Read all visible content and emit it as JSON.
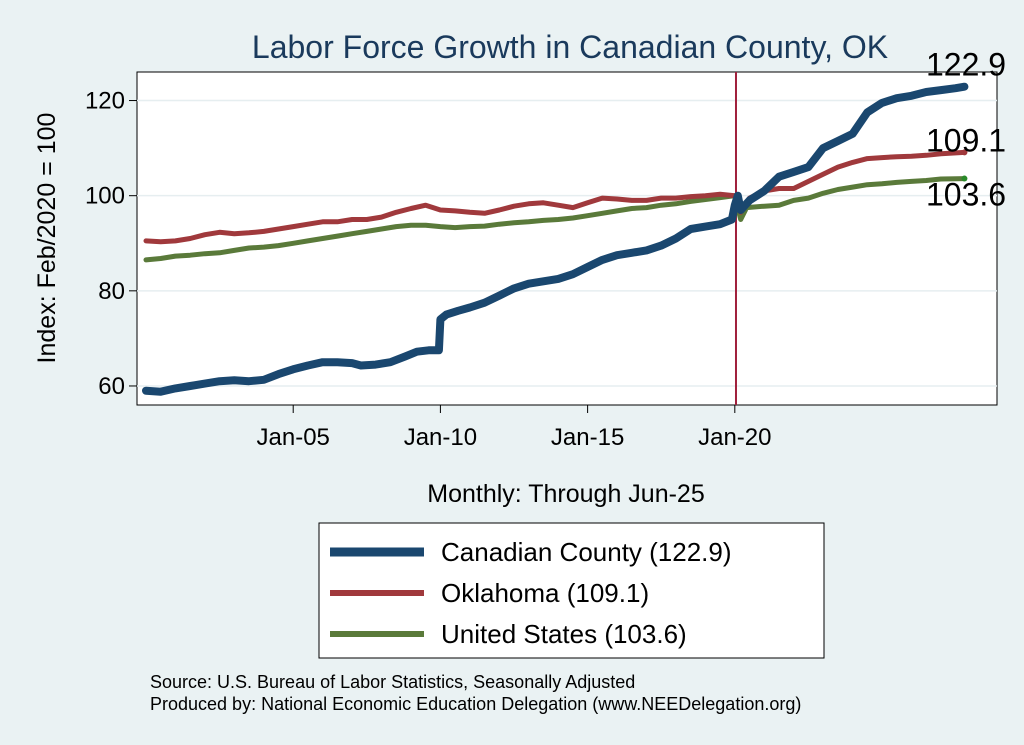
{
  "chart_data": {
    "type": "line",
    "title": "Labor Force Growth in Canadian  County, OK",
    "xlabel": "Monthly: Through Jun-25",
    "ylabel": "Index: Feb/2020 = 100",
    "ylim": [
      56,
      126
    ],
    "y_ticks": [
      60,
      80,
      100,
      120
    ],
    "x_range": [
      2000.0,
      2028.6
    ],
    "x_ticks": [
      {
        "value": 2005.0,
        "label": "Jan-05"
      },
      {
        "value": 2010.0,
        "label": "Jan-10"
      },
      {
        "value": 2015.0,
        "label": "Jan-15"
      },
      {
        "value": 2020.0,
        "label": "Jan-20"
      }
    ],
    "reference_line": {
      "x": 2020.04,
      "color": "#a0203c"
    },
    "grid": true,
    "series": [
      {
        "name": "Canadian  County",
        "legend_label": "Canadian  County (122.9)",
        "end_value_label": "122.9",
        "color": "#1a476f",
        "line_width": 8,
        "points": [
          [
            2000.0,
            59.0
          ],
          [
            2000.5,
            58.8
          ],
          [
            2001.0,
            59.5
          ],
          [
            2001.5,
            60.0
          ],
          [
            2002.0,
            60.5
          ],
          [
            2002.5,
            61.0
          ],
          [
            2003.0,
            61.2
          ],
          [
            2003.5,
            61.0
          ],
          [
            2004.0,
            61.3
          ],
          [
            2004.5,
            62.5
          ],
          [
            2005.0,
            63.5
          ],
          [
            2005.5,
            64.3
          ],
          [
            2006.0,
            65.0
          ],
          [
            2006.5,
            65.0
          ],
          [
            2007.0,
            64.8
          ],
          [
            2007.3,
            64.3
          ],
          [
            2007.8,
            64.5
          ],
          [
            2008.3,
            65.0
          ],
          [
            2008.8,
            66.2
          ],
          [
            2009.2,
            67.2
          ],
          [
            2009.6,
            67.5
          ],
          [
            2009.95,
            67.5
          ],
          [
            2010.0,
            74.0
          ],
          [
            2010.2,
            75.0
          ],
          [
            2010.6,
            75.8
          ],
          [
            2011.0,
            76.5
          ],
          [
            2011.5,
            77.5
          ],
          [
            2012.0,
            79.0
          ],
          [
            2012.5,
            80.5
          ],
          [
            2013.0,
            81.5
          ],
          [
            2013.5,
            82.0
          ],
          [
            2014.0,
            82.5
          ],
          [
            2014.5,
            83.5
          ],
          [
            2015.0,
            85.0
          ],
          [
            2015.5,
            86.5
          ],
          [
            2016.0,
            87.5
          ],
          [
            2016.5,
            88.0
          ],
          [
            2017.0,
            88.5
          ],
          [
            2017.5,
            89.5
          ],
          [
            2018.0,
            91.0
          ],
          [
            2018.5,
            93.0
          ],
          [
            2019.0,
            93.5
          ],
          [
            2019.5,
            94.0
          ],
          [
            2019.9,
            95.0
          ],
          [
            2020.0,
            98.0
          ],
          [
            2020.1,
            100.0
          ],
          [
            2020.2,
            97.0
          ],
          [
            2020.5,
            99.0
          ],
          [
            2021.0,
            101.0
          ],
          [
            2021.5,
            104.0
          ],
          [
            2022.0,
            105.0
          ],
          [
            2022.5,
            106.0
          ],
          [
            2023.0,
            110.0
          ],
          [
            2023.5,
            111.5
          ],
          [
            2024.0,
            113.0
          ],
          [
            2024.5,
            117.5
          ],
          [
            2025.0,
            119.5
          ],
          [
            2025.5,
            120.5
          ],
          [
            2026.0,
            121.0
          ],
          [
            2026.5,
            121.8
          ],
          [
            2027.0,
            122.2
          ],
          [
            2027.5,
            122.6
          ],
          [
            2027.8,
            122.9
          ]
        ]
      },
      {
        "name": "Oklahoma",
        "legend_label": "Oklahoma (109.1)",
        "end_value_label": "109.1",
        "color": "#a0393c",
        "line_width": 5,
        "points": [
          [
            2000.0,
            90.5
          ],
          [
            2000.5,
            90.3
          ],
          [
            2001.0,
            90.5
          ],
          [
            2001.5,
            91.0
          ],
          [
            2002.0,
            91.8
          ],
          [
            2002.5,
            92.3
          ],
          [
            2003.0,
            92.0
          ],
          [
            2003.5,
            92.2
          ],
          [
            2004.0,
            92.5
          ],
          [
            2004.5,
            93.0
          ],
          [
            2005.0,
            93.5
          ],
          [
            2005.5,
            94.0
          ],
          [
            2006.0,
            94.5
          ],
          [
            2006.5,
            94.5
          ],
          [
            2007.0,
            95.0
          ],
          [
            2007.5,
            95.0
          ],
          [
            2008.0,
            95.5
          ],
          [
            2008.5,
            96.5
          ],
          [
            2009.0,
            97.3
          ],
          [
            2009.5,
            98.0
          ],
          [
            2010.0,
            97.0
          ],
          [
            2010.5,
            96.8
          ],
          [
            2011.0,
            96.5
          ],
          [
            2011.5,
            96.3
          ],
          [
            2012.0,
            97.0
          ],
          [
            2012.5,
            97.8
          ],
          [
            2013.0,
            98.3
          ],
          [
            2013.5,
            98.5
          ],
          [
            2014.0,
            98.0
          ],
          [
            2014.5,
            97.5
          ],
          [
            2015.0,
            98.5
          ],
          [
            2015.5,
            99.5
          ],
          [
            2016.0,
            99.3
          ],
          [
            2016.5,
            99.0
          ],
          [
            2017.0,
            99.0
          ],
          [
            2017.5,
            99.5
          ],
          [
            2018.0,
            99.5
          ],
          [
            2018.5,
            99.8
          ],
          [
            2019.0,
            100.0
          ],
          [
            2019.5,
            100.3
          ],
          [
            2020.0,
            100.0
          ],
          [
            2020.2,
            96.5
          ],
          [
            2020.5,
            99.5
          ],
          [
            2021.0,
            101.0
          ],
          [
            2021.5,
            101.5
          ],
          [
            2022.0,
            101.5
          ],
          [
            2022.5,
            103.0
          ],
          [
            2023.0,
            104.5
          ],
          [
            2023.5,
            106.0
          ],
          [
            2024.0,
            107.0
          ],
          [
            2024.5,
            107.8
          ],
          [
            2025.0,
            108.0
          ],
          [
            2025.5,
            108.2
          ],
          [
            2026.0,
            108.3
          ],
          [
            2026.5,
            108.5
          ],
          [
            2027.0,
            108.8
          ],
          [
            2027.8,
            109.1
          ]
        ]
      },
      {
        "name": "United States",
        "legend_label": "United States (103.6)",
        "end_value_label": "103.6",
        "color": "#5a7a3a",
        "line_width": 5,
        "points": [
          [
            2000.0,
            86.5
          ],
          [
            2000.5,
            86.8
          ],
          [
            2001.0,
            87.3
          ],
          [
            2001.5,
            87.5
          ],
          [
            2002.0,
            87.8
          ],
          [
            2002.5,
            88.0
          ],
          [
            2003.0,
            88.5
          ],
          [
            2003.5,
            89.0
          ],
          [
            2004.0,
            89.2
          ],
          [
            2004.5,
            89.5
          ],
          [
            2005.0,
            90.0
          ],
          [
            2005.5,
            90.5
          ],
          [
            2006.0,
            91.0
          ],
          [
            2006.5,
            91.5
          ],
          [
            2007.0,
            92.0
          ],
          [
            2007.5,
            92.5
          ],
          [
            2008.0,
            93.0
          ],
          [
            2008.5,
            93.5
          ],
          [
            2009.0,
            93.8
          ],
          [
            2009.5,
            93.8
          ],
          [
            2010.0,
            93.5
          ],
          [
            2010.5,
            93.3
          ],
          [
            2011.0,
            93.5
          ],
          [
            2011.5,
            93.6
          ],
          [
            2012.0,
            94.0
          ],
          [
            2012.5,
            94.3
          ],
          [
            2013.0,
            94.5
          ],
          [
            2013.5,
            94.8
          ],
          [
            2014.0,
            95.0
          ],
          [
            2014.5,
            95.3
          ],
          [
            2015.0,
            95.8
          ],
          [
            2015.5,
            96.3
          ],
          [
            2016.0,
            96.8
          ],
          [
            2016.5,
            97.3
          ],
          [
            2017.0,
            97.5
          ],
          [
            2017.5,
            98.0
          ],
          [
            2018.0,
            98.3
          ],
          [
            2018.5,
            98.8
          ],
          [
            2019.0,
            99.2
          ],
          [
            2019.5,
            99.6
          ],
          [
            2020.0,
            100.0
          ],
          [
            2020.2,
            95.0
          ],
          [
            2020.4,
            97.5
          ],
          [
            2021.0,
            97.8
          ],
          [
            2021.5,
            98.0
          ],
          [
            2022.0,
            99.0
          ],
          [
            2022.5,
            99.5
          ],
          [
            2023.0,
            100.5
          ],
          [
            2023.5,
            101.3
          ],
          [
            2024.0,
            101.8
          ],
          [
            2024.5,
            102.3
          ],
          [
            2025.0,
            102.5
          ],
          [
            2025.5,
            102.8
          ],
          [
            2026.0,
            103.0
          ],
          [
            2026.5,
            103.2
          ],
          [
            2027.0,
            103.5
          ],
          [
            2027.8,
            103.6
          ]
        ]
      }
    ]
  },
  "notes": {
    "source": "Source: U.S. Bureau of Labor Statistics, Seasonally Adjusted",
    "produced_by": "Produced by: National Economic Education Delegation (www.NEEDelegation.org)"
  }
}
